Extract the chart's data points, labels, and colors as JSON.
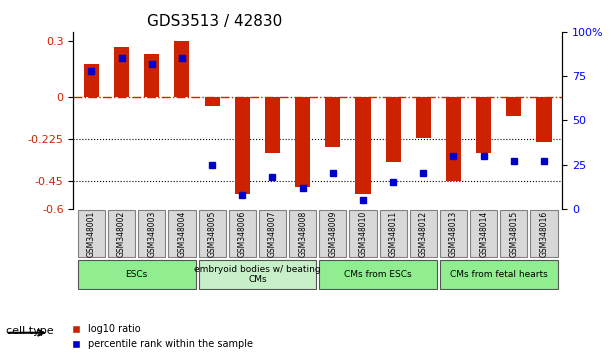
{
  "title": "GDS3513 / 42830",
  "samples": [
    "GSM348001",
    "GSM348002",
    "GSM348003",
    "GSM348004",
    "GSM348005",
    "GSM348006",
    "GSM348007",
    "GSM348008",
    "GSM348009",
    "GSM348010",
    "GSM348011",
    "GSM348012",
    "GSM348013",
    "GSM348014",
    "GSM348015",
    "GSM348016"
  ],
  "log10_ratio": [
    0.18,
    0.27,
    0.23,
    0.3,
    -0.05,
    -0.52,
    -0.3,
    -0.48,
    -0.27,
    -0.52,
    -0.35,
    -0.22,
    -0.45,
    -0.3,
    -0.1,
    -0.24
  ],
  "percentile_rank": [
    78,
    85,
    82,
    85,
    25,
    8,
    18,
    12,
    20,
    5,
    15,
    20,
    30,
    30,
    27,
    27
  ],
  "ylim": [
    -0.6,
    0.35
  ],
  "y2lim": [
    0,
    100
  ],
  "yticks": [
    0.3,
    0,
    -0.225,
    -0.45,
    -0.6
  ],
  "y2ticks": [
    100,
    75,
    50,
    25,
    0
  ],
  "y2ticklabels": [
    "100%",
    "75",
    "50",
    "25",
    "0"
  ],
  "hline_y": 0,
  "dotted_lines": [
    -0.225,
    -0.45
  ],
  "cell_groups": [
    {
      "label": "ESCs",
      "start": 0,
      "end": 4,
      "color": "#90ee90"
    },
    {
      "label": "embryoid bodies w/ beating\nCMs",
      "start": 4,
      "end": 8,
      "color": "#c8f0c8"
    },
    {
      "label": "CMs from ESCs",
      "start": 8,
      "end": 12,
      "color": "#90ee90"
    },
    {
      "label": "CMs from fetal hearts",
      "start": 12,
      "end": 16,
      "color": "#90ee90"
    }
  ],
  "bar_color": "#cc2200",
  "dot_color": "#0000cc",
  "legend_items": [
    {
      "label": "log10 ratio",
      "color": "#cc2200"
    },
    {
      "label": "percentile rank within the sample",
      "color": "#0000cc"
    }
  ],
  "cell_type_label": "cell type"
}
